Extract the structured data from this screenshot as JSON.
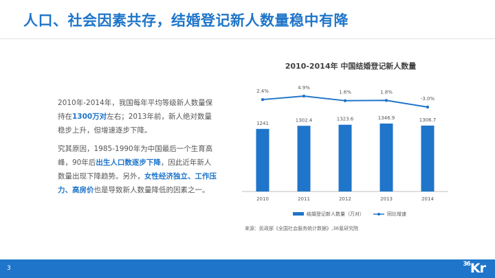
{
  "header": {
    "title": "人口、社会因素共存，结婚登记新人数量稳中有降"
  },
  "left_text": {
    "p1": [
      {
        "t": "2010年-2014年，我国每年平均等级新人数量保持在",
        "hl": false
      },
      {
        "t": "1300万对",
        "hl": true
      },
      {
        "t": "左右；2013年前，新人绝对数量稳步上升，但增速逐步下降。",
        "hl": false
      }
    ],
    "p2": [
      {
        "t": "究其原因，1985-1990年为中国最后一个生育高峰，90年后",
        "hl": false
      },
      {
        "t": "出生人口数逐步下降",
        "hl": true
      },
      {
        "t": "，因此近年新人数量出现下降趋势。另外，",
        "hl": false
      },
      {
        "t": "女性经济独立、工作压力、高房价",
        "hl": true
      },
      {
        "t": "也是导致新人数量降低的因素之一。",
        "hl": false
      }
    ]
  },
  "chart_data": {
    "type": "bar",
    "title": "2010-2014年 中国结婚登记新人数量",
    "categories": [
      "2010",
      "2011",
      "2012",
      "2013",
      "2014"
    ],
    "series": [
      {
        "name": "结婚登记新人数量（万对）",
        "type": "bar",
        "values": [
          1241,
          1302.4,
          1323.6,
          1346.9,
          1306.7
        ],
        "labels": [
          "1241",
          "1302.4",
          "1323.6",
          "1346.9",
          "1306.7"
        ]
      },
      {
        "name": "同比增速",
        "type": "line",
        "values": [
          2.4,
          4.9,
          1.6,
          1.8,
          -3.0
        ],
        "labels": [
          "2.4%",
          "4.9%",
          "1.6%",
          "1.8%",
          "-3.0%"
        ]
      }
    ],
    "grid": false,
    "legend_position": "bottom",
    "colors": {
      "bar": "#1f75c9",
      "line": "#1f75c9",
      "axis": "#bfbfbf",
      "label": "#555555"
    },
    "source": "来源：民政部《全国社会服务统计数据》,36氪研究院"
  },
  "footer": {
    "page": "3",
    "logo_num": "36",
    "logo_kr": "Kr"
  },
  "colors": {
    "accent": "#1f75c9",
    "text": "#555555"
  }
}
